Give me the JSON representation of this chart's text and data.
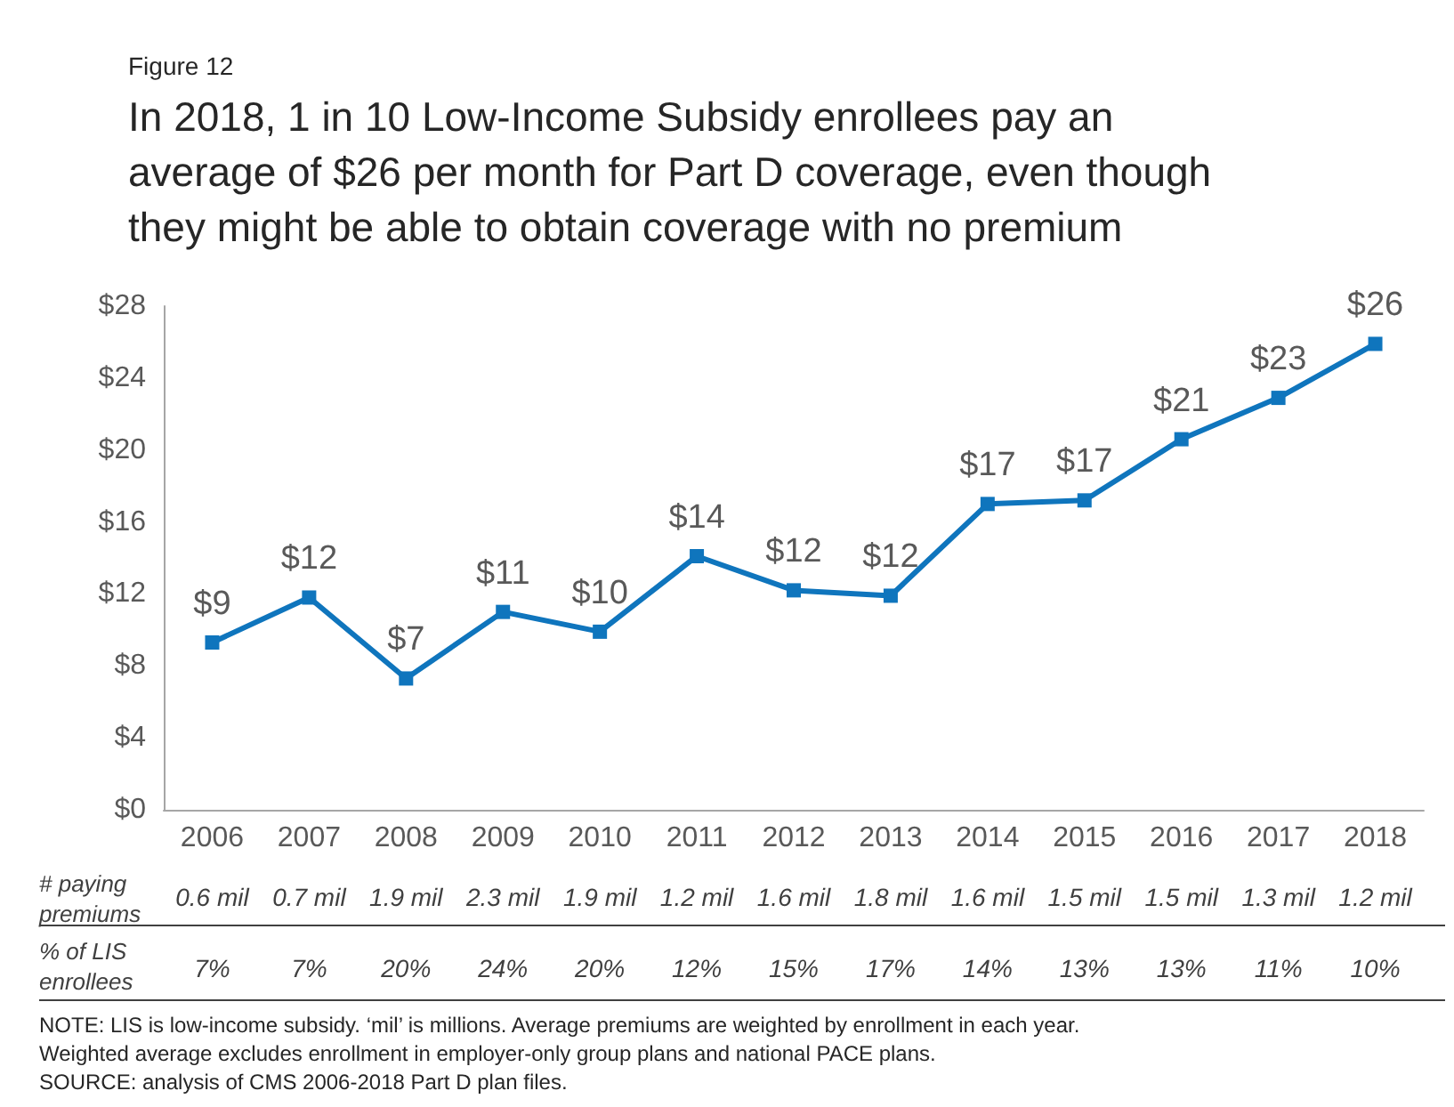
{
  "chart_data": {
    "type": "line",
    "subtitle": "Figure 12",
    "title": "In 2018, 1 in 10 Low-Income Subsidy enrollees pay an average of $26 per month for Part D coverage, even though they might be able to obtain coverage with no premium",
    "categories": [
      "2006",
      "2007",
      "2008",
      "2009",
      "2010",
      "2011",
      "2012",
      "2013",
      "2014",
      "2015",
      "2016",
      "2017",
      "2018"
    ],
    "series": [
      {
        "color": "#0f75bd",
        "values": [
          9.3,
          11.8,
          7.3,
          11.0,
          9.9,
          14.1,
          12.2,
          11.9,
          17.0,
          17.2,
          20.6,
          22.9,
          25.9
        ],
        "value_labels": [
          "$9",
          "$12",
          "$7",
          "$11",
          "$10",
          "$14",
          "$12",
          "$12",
          "$17",
          "$17",
          "$21",
          "$23",
          "$26"
        ]
      }
    ],
    "ylim": [
      0,
      28
    ],
    "yticks": [
      {
        "value": 0,
        "label": "$0"
      },
      {
        "value": 4,
        "label": "$4"
      },
      {
        "value": 8,
        "label": "$8"
      },
      {
        "value": 12,
        "label": "$12"
      },
      {
        "value": 16,
        "label": "$16"
      },
      {
        "value": 20,
        "label": "$20"
      },
      {
        "value": 24,
        "label": "$24"
      },
      {
        "value": 28,
        "label": "$28"
      }
    ],
    "grid": false,
    "marker": "square",
    "line_style": "solid",
    "annotations": [
      "# paying premiums",
      "0.6 mil",
      "0.7 mil",
      "1.9 mil",
      "2.3 mil",
      "1.9 mil",
      "1.2 mil",
      "1.6 mil",
      "1.8 mil",
      "1.6 mil",
      "1.5 mil",
      "1.5 mil",
      "1.3 mil",
      "1.2 mil",
      "% of LIS enrollees",
      "7%",
      "7%",
      "20%",
      "24%",
      "20%",
      "12%",
      "15%",
      "17%",
      "14%",
      "13%",
      "13%",
      "11%",
      "10%",
      "NOTE: LIS is low-income subsidy. ‘mil’ is millions. Average premiums are weighted by enrollment in each year.",
      "Weighted average excludes enrollment in employer-only group plans and national PACE plans.",
      "SOURCE: analysis of CMS 2006-2018 Part D plan files."
    ]
  }
}
